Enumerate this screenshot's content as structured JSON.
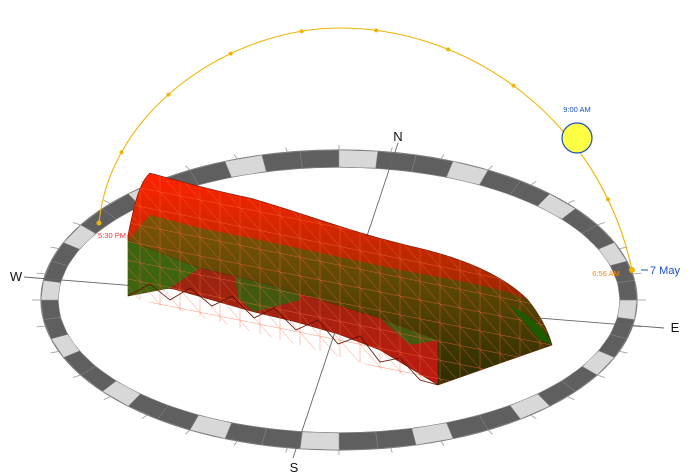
{
  "compass": {
    "north": "N",
    "south": "S",
    "east": "E",
    "west": "W"
  },
  "sun": {
    "date_label": "7 May",
    "current_time": "9:00 AM",
    "sunrise": "6:56 AM",
    "sunset": "5:30 PM"
  },
  "colors": {
    "sun_path": "#f0b400",
    "sun_fill": "#ffff44",
    "sunrise_text": "#ff8800",
    "sunset_text": "#ff3333",
    "date_text": "#1a4fc8",
    "time_text": "#1a4fc8",
    "surface_high": "#ff2200",
    "surface_low": "#1a6600",
    "ring_dark": "#5f5f5f",
    "ring_light": "#d8d8d8"
  }
}
